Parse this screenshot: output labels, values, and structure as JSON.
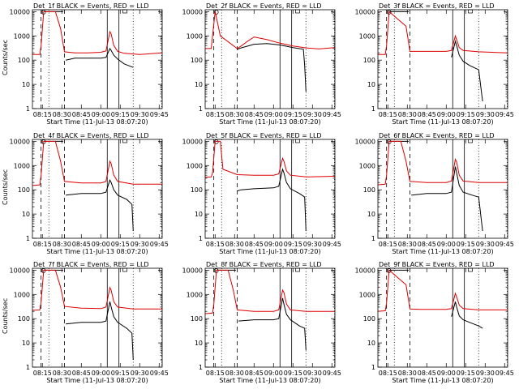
{
  "colors": {
    "events": "#000000",
    "lld": "#dd0000"
  },
  "chart_data": [
    {
      "type": "line",
      "title": "Det_1f BLACK = Events, RED = LLD",
      "xlabel": "Start Time (11-Jul-13 08:07:20)",
      "ylabel": "Counts/sec",
      "yscale": "log",
      "ylim": [
        1,
        12000
      ],
      "x_ticks": [
        "08:15",
        "08:30",
        "08:45",
        "09:00",
        "09:15",
        "09:30",
        "09:45"
      ],
      "y_ticks": [
        "1",
        "10",
        "100",
        "1000",
        "10000"
      ],
      "vlines": {
        "dashed": [
          "08:14",
          "08:32"
        ],
        "dotted": [
          "08:20",
          "09:25",
          "09:47"
        ],
        "solid": [
          "09:05",
          "09:14"
        ]
      },
      "series": [
        {
          "name": "Events",
          "x": [
            "08:13",
            "08:14",
            "08:16",
            "08:21",
            "08:25",
            "08:31",
            "08:32",
            "08:33",
            "08:40",
            "08:50",
            "09:00",
            "09:04",
            "09:07",
            "09:08",
            "09:10",
            "09:13",
            "09:18",
            "09:25"
          ],
          "y": [
            null,
            null,
            10000,
            10000,
            10000,
            10000,
            null,
            100,
            120,
            120,
            120,
            130,
            300,
            250,
            160,
            110,
            70,
            50
          ]
        },
        {
          "name": "LLD",
          "x": [
            "08:07",
            "08:13",
            "08:14",
            "08:16",
            "08:21",
            "08:25",
            "08:29",
            "08:32",
            "08:40",
            "08:50",
            "09:00",
            "09:04",
            "09:07",
            "09:08",
            "09:10",
            "09:13",
            "09:18",
            "09:30",
            "09:47"
          ],
          "y": [
            170,
            170,
            400,
            10000,
            10000,
            10000,
            2000,
            220,
            200,
            200,
            210,
            240,
            1500,
            1200,
            400,
            230,
            190,
            170,
            200
          ]
        }
      ]
    },
    {
      "type": "line",
      "title": "Det_2f BLACK = Events, RED = LLD",
      "xlabel": "Start Time (11-Jul-13 08:07:20)",
      "ylabel": "",
      "yscale": "log",
      "ylim": [
        1,
        12000
      ],
      "x_ticks": [
        "08:15",
        "08:30",
        "08:45",
        "09:00",
        "09:15",
        "09:30",
        "09:45"
      ],
      "y_ticks": [
        "1",
        "10",
        "100",
        "1000",
        "10000"
      ],
      "vlines": {
        "dashed": [
          "08:14",
          "08:32"
        ],
        "dotted": [
          "08:20",
          "09:25",
          "09:47"
        ],
        "solid": [
          "09:05",
          "09:14"
        ]
      },
      "series": [
        {
          "name": "Events",
          "x": [
            "08:32",
            "08:35",
            "08:45",
            "08:55",
            "09:05",
            "09:15",
            "09:23",
            "09:24",
            "09:25"
          ],
          "y": [
            280,
            320,
            450,
            480,
            420,
            330,
            280,
            60,
            5
          ]
        },
        {
          "name": "LLD",
          "x": [
            "08:07",
            "08:12",
            "08:13",
            "08:15",
            "08:19",
            "08:32",
            "08:35",
            "08:40",
            "08:45",
            "08:55",
            "09:05",
            "09:15",
            "09:25",
            "09:35",
            "09:47"
          ],
          "y": [
            300,
            300,
            1000,
            10000,
            1000,
            300,
            380,
            600,
            900,
            700,
            500,
            380,
            320,
            290,
            330
          ]
        }
      ]
    },
    {
      "type": "line",
      "title": "Det_3f BLACK = Events, RED = LLD",
      "xlabel": "Start Time (11-Jul-13 08:07:20)",
      "ylabel": "",
      "yscale": "log",
      "ylim": [
        1,
        12000
      ],
      "x_ticks": [
        "08:15",
        "08:30",
        "08:45",
        "09:00",
        "09:15",
        "09:30",
        "09:45"
      ],
      "y_ticks": [
        "1",
        "10",
        "100",
        "1000",
        "10000"
      ],
      "vlines": {
        "dashed": [
          "08:14",
          "08:32"
        ],
        "dotted": [
          "08:20",
          "09:25",
          "09:47"
        ],
        "solid": [
          "09:05",
          "09:14"
        ]
      },
      "series": [
        {
          "name": "Events",
          "x": [
            "08:14",
            "08:16",
            "08:25",
            "08:31",
            "09:00",
            "09:04",
            "09:07",
            "09:08",
            "09:10",
            "09:13",
            "09:18",
            "09:25",
            "09:28"
          ],
          "y": [
            null,
            10000,
            10000,
            10000,
            null,
            130,
            600,
            400,
            160,
            90,
            60,
            40,
            2
          ]
        },
        {
          "name": "LLD",
          "x": [
            "08:07",
            "08:13",
            "08:14",
            "08:16",
            "08:29",
            "08:32",
            "08:40",
            "08:50",
            "09:00",
            "09:04",
            "09:07",
            "09:08",
            "09:10",
            "09:13",
            "09:25",
            "09:47"
          ],
          "y": [
            170,
            170,
            400,
            10000,
            2500,
            230,
            230,
            230,
            230,
            250,
            1000,
            700,
            330,
            250,
            220,
            200
          ]
        }
      ]
    },
    {
      "type": "line",
      "title": "Det_4f BLACK = Events, RED = LLD",
      "xlabel": "Start Time (11-Jul-13 08:07:20)",
      "ylabel": "Counts/sec",
      "yscale": "log",
      "ylim": [
        1,
        12000
      ],
      "x_ticks": [
        "08:15",
        "08:30",
        "08:45",
        "09:00",
        "09:15",
        "09:30",
        "09:45"
      ],
      "y_ticks": [
        "1",
        "10",
        "100",
        "1000",
        "10000"
      ],
      "vlines": {
        "dashed": [
          "08:14",
          "08:32"
        ],
        "dotted": [
          "08:20",
          "09:25",
          "09:47"
        ],
        "solid": [
          "09:05",
          "09:14"
        ]
      },
      "series": [
        {
          "name": "Events",
          "x": [
            "08:14",
            "08:16",
            "08:25",
            "08:31",
            "08:32",
            "08:33",
            "08:45",
            "09:00",
            "09:04",
            "09:07",
            "09:08",
            "09:10",
            "09:13",
            "09:20",
            "09:24",
            "09:25"
          ],
          "y": [
            null,
            10000,
            10000,
            10000,
            null,
            60,
            70,
            70,
            80,
            250,
            200,
            100,
            60,
            40,
            25,
            2
          ]
        },
        {
          "name": "LLD",
          "x": [
            "08:07",
            "08:13",
            "08:14",
            "08:16",
            "08:25",
            "08:29",
            "08:32",
            "08:45",
            "09:00",
            "09:04",
            "09:07",
            "09:08",
            "09:10",
            "09:13",
            "09:25",
            "09:47"
          ],
          "y": [
            150,
            160,
            400,
            10000,
            10000,
            1500,
            220,
            190,
            190,
            220,
            1500,
            1200,
            400,
            220,
            170,
            170
          ]
        }
      ]
    },
    {
      "type": "line",
      "title": "Det_5f BLACK = Events, RED = LLD",
      "xlabel": "Start Time (11-Jul-13 08:07:20)",
      "ylabel": "",
      "yscale": "log",
      "ylim": [
        1,
        12000
      ],
      "x_ticks": [
        "08:15",
        "08:30",
        "08:45",
        "09:00",
        "09:15",
        "09:30",
        "09:45"
      ],
      "y_ticks": [
        "1",
        "10",
        "100",
        "1000",
        "10000"
      ],
      "vlines": {
        "dashed": [
          "08:14",
          "08:32"
        ],
        "dotted": [
          "08:20",
          "09:25",
          "09:47"
        ],
        "solid": [
          "09:05",
          "09:14"
        ]
      },
      "series": [
        {
          "name": "Events",
          "x": [
            "08:32",
            "08:35",
            "08:45",
            "09:00",
            "09:04",
            "09:07",
            "09:08",
            "09:10",
            "09:13",
            "09:20",
            "09:24",
            "09:25"
          ],
          "y": [
            90,
            100,
            110,
            120,
            140,
            700,
            500,
            200,
            110,
            70,
            50,
            2
          ]
        },
        {
          "name": "LLD",
          "x": [
            "08:07",
            "08:12",
            "08:13",
            "08:15",
            "08:19",
            "08:21",
            "08:32",
            "08:45",
            "09:00",
            "09:04",
            "09:07",
            "09:08",
            "09:10",
            "09:13",
            "09:25",
            "09:47"
          ],
          "y": [
            330,
            340,
            500,
            10000,
            10000,
            700,
            420,
            400,
            400,
            450,
            2000,
            1500,
            600,
            400,
            340,
            360
          ]
        }
      ]
    },
    {
      "type": "line",
      "title": "Det_6f BLACK = Events, RED = LLD",
      "xlabel": "Start Time (11-Jul-13 08:07:20)",
      "ylabel": "",
      "yscale": "log",
      "ylim": [
        1,
        12000
      ],
      "x_ticks": [
        "08:15",
        "08:30",
        "08:45",
        "09:00",
        "09:15",
        "09:30",
        "09:45"
      ],
      "y_ticks": [
        "1",
        "10",
        "100",
        "1000",
        "10000"
      ],
      "vlines": {
        "dashed": [
          "08:14",
          "08:32"
        ],
        "dotted": [
          "08:20",
          "09:25",
          "09:47"
        ],
        "solid": [
          "09:05",
          "09:14"
        ]
      },
      "series": [
        {
          "name": "Events",
          "x": [
            "08:14",
            "08:16",
            "08:25",
            "08:31",
            "08:32",
            "08:33",
            "08:45",
            "09:00",
            "09:04",
            "09:07",
            "09:08",
            "09:10",
            "09:13",
            "09:20",
            "09:25",
            "09:28"
          ],
          "y": [
            null,
            10000,
            10000,
            10000,
            null,
            60,
            70,
            70,
            80,
            900,
            500,
            150,
            80,
            60,
            50,
            2
          ]
        },
        {
          "name": "LLD",
          "x": [
            "08:07",
            "08:13",
            "08:14",
            "08:16",
            "08:25",
            "08:29",
            "08:32",
            "08:45",
            "09:00",
            "09:04",
            "09:07",
            "09:08",
            "09:10",
            "09:13",
            "09:25",
            "09:47"
          ],
          "y": [
            160,
            170,
            400,
            10000,
            10000,
            1500,
            220,
            200,
            200,
            230,
            1800,
            1400,
            400,
            230,
            200,
            200
          ]
        }
      ]
    },
    {
      "type": "line",
      "title": "Det_7f BLACK = Events, RED = LLD",
      "xlabel": "Start Time (11-Jul-13 08:07:20)",
      "ylabel": "Counts/sec",
      "yscale": "log",
      "ylim": [
        1,
        12000
      ],
      "x_ticks": [
        "08:15",
        "08:30",
        "08:45",
        "09:00",
        "09:15",
        "09:30",
        "09:45"
      ],
      "y_ticks": [
        "1",
        "10",
        "100",
        "1000",
        "10000"
      ],
      "vlines": {
        "dashed": [
          "08:14",
          "08:32"
        ],
        "dotted": [
          "08:20",
          "09:25",
          "09:47"
        ],
        "solid": [
          "09:05",
          "09:14"
        ]
      },
      "series": [
        {
          "name": "Events",
          "x": [
            "08:14",
            "08:16",
            "08:25",
            "08:31",
            "08:32",
            "08:33",
            "08:45",
            "09:00",
            "09:04",
            "09:07",
            "09:08",
            "09:10",
            "09:13",
            "09:20",
            "09:24",
            "09:25"
          ],
          "y": [
            null,
            10000,
            10000,
            10000,
            null,
            60,
            70,
            70,
            80,
            500,
            300,
            120,
            70,
            40,
            25,
            2
          ]
        },
        {
          "name": "LLD",
          "x": [
            "08:07",
            "08:13",
            "08:14",
            "08:16",
            "08:25",
            "08:29",
            "08:32",
            "08:45",
            "09:00",
            "09:04",
            "09:07",
            "09:08",
            "09:10",
            "09:13",
            "09:25",
            "09:47"
          ],
          "y": [
            220,
            230,
            500,
            10000,
            10000,
            2000,
            320,
            270,
            260,
            300,
            1900,
            1500,
            500,
            300,
            250,
            250
          ]
        }
      ]
    },
    {
      "type": "line",
      "title": "Det_8f BLACK = Events, RED = LLD",
      "xlabel": "Start Time (11-Jul-13 08:07:20)",
      "ylabel": "",
      "yscale": "log",
      "ylim": [
        1,
        12000
      ],
      "x_ticks": [
        "08:15",
        "08:30",
        "08:45",
        "09:00",
        "09:15",
        "09:30",
        "09:45"
      ],
      "y_ticks": [
        "1",
        "10",
        "100",
        "1000",
        "10000"
      ],
      "vlines": {
        "dashed": [
          "08:14",
          "08:32"
        ],
        "dotted": [
          "08:20",
          "09:25",
          "09:47"
        ],
        "solid": [
          "09:05",
          "09:14"
        ]
      },
      "series": [
        {
          "name": "Events",
          "x": [
            "08:14",
            "08:16",
            "08:25",
            "08:31",
            "08:32",
            "08:33",
            "08:45",
            "09:00",
            "09:04",
            "09:07",
            "09:08",
            "09:10",
            "09:13",
            "09:20",
            "09:24",
            "09:25"
          ],
          "y": [
            null,
            10000,
            10000,
            10000,
            null,
            80,
            90,
            90,
            100,
            700,
            400,
            150,
            90,
            50,
            40,
            5
          ]
        },
        {
          "name": "LLD",
          "x": [
            "08:07",
            "08:13",
            "08:14",
            "08:16",
            "08:25",
            "08:29",
            "08:32",
            "08:45",
            "09:00",
            "09:04",
            "09:07",
            "09:08",
            "09:10",
            "09:13",
            "09:25",
            "09:47"
          ],
          "y": [
            160,
            170,
            400,
            10000,
            10000,
            1500,
            230,
            200,
            200,
            230,
            1500,
            1200,
            400,
            230,
            200,
            200
          ]
        }
      ]
    },
    {
      "type": "line",
      "title": "Det_9f BLACK = Events, RED = LLD",
      "xlabel": "Start Time (11-Jul-13 08:07:20)",
      "ylabel": "",
      "yscale": "log",
      "ylim": [
        1,
        12000
      ],
      "x_ticks": [
        "08:15",
        "08:30",
        "08:45",
        "09:00",
        "09:15",
        "09:30",
        "09:45"
      ],
      "y_ticks": [
        "1",
        "10",
        "100",
        "1000",
        "10000"
      ],
      "vlines": {
        "dashed": [
          "08:14",
          "08:32"
        ],
        "dotted": [
          "08:20",
          "09:25",
          "09:47"
        ],
        "solid": [
          "09:05",
          "09:14"
        ]
      },
      "series": [
        {
          "name": "Events",
          "x": [
            "08:14",
            "08:16",
            "08:25",
            "08:31",
            "09:00",
            "09:04",
            "09:07",
            "09:08",
            "09:10",
            "09:13",
            "09:18",
            "09:25",
            "09:28"
          ],
          "y": [
            null,
            10000,
            10000,
            10000,
            null,
            120,
            500,
            300,
            130,
            90,
            70,
            50,
            40
          ]
        },
        {
          "name": "LLD",
          "x": [
            "08:07",
            "08:13",
            "08:14",
            "08:16",
            "08:29",
            "08:32",
            "08:40",
            "08:50",
            "09:00",
            "09:04",
            "09:07",
            "09:08",
            "09:10",
            "09:13",
            "09:25",
            "09:47"
          ],
          "y": [
            200,
            210,
            450,
            10000,
            2500,
            250,
            240,
            240,
            240,
            260,
            1100,
            800,
            360,
            260,
            230,
            230
          ]
        }
      ]
    }
  ]
}
